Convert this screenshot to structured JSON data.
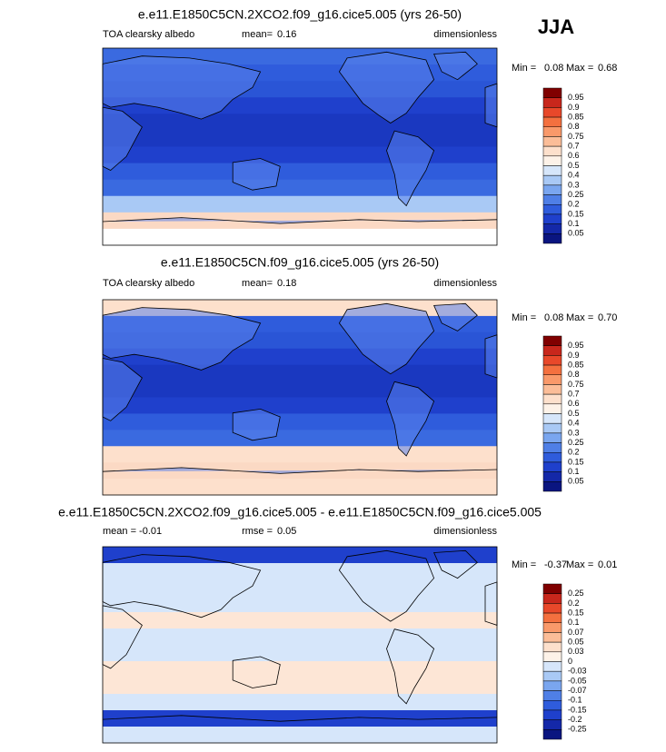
{
  "season": "JJA",
  "panels": [
    {
      "title": "e.e11.E1850C5CN.2XCO2.f09_g16.cice5.005 (yrs 26-50)",
      "left": "TOA clearsky albedo",
      "stat_label": "mean=",
      "stat_value": "0.16",
      "units": "dimensionless",
      "min_label": "Min =",
      "min": "0.08",
      "max_label": "Max =",
      "max": "0.68",
      "levels": [
        "0.95",
        "0.9",
        "0.85",
        "0.8",
        "0.75",
        "0.7",
        "0.6",
        "0.5",
        "0.4",
        "0.3",
        "0.25",
        "0.2",
        "0.15",
        "0.1",
        "0.05"
      ]
    },
    {
      "title": "e.e11.E1850C5CN.f09_g16.cice5.005 (yrs 26-50)",
      "left": "TOA clearsky albedo",
      "stat_label": "mean=",
      "stat_value": "0.18",
      "units": "dimensionless",
      "min_label": "Min =",
      "min": "0.08",
      "max_label": "Max =",
      "max": "0.70",
      "levels": [
        "0.95",
        "0.9",
        "0.85",
        "0.8",
        "0.75",
        "0.7",
        "0.6",
        "0.5",
        "0.4",
        "0.3",
        "0.25",
        "0.2",
        "0.15",
        "0.1",
        "0.05"
      ]
    },
    {
      "title": "e.e11.E1850C5CN.2XCO2.f09_g16.cice5.005 - e.e11.E1850C5CN.f09_g16.cice5.005",
      "left": "mean =  -0.01",
      "stat_label": "rmse =",
      "stat_value": "0.05",
      "units": "dimensionless",
      "min_label": "Min =",
      "min": "-0.37",
      "max_label": "Max =",
      "max": "0.01",
      "levels": [
        "0.25",
        "0.2",
        "0.15",
        "0.1",
        "0.07",
        "0.05",
        "0.03",
        "0",
        "-0.03",
        "-0.05",
        "-0.07",
        "-0.1",
        "-0.15",
        "-0.2",
        "-0.25"
      ]
    }
  ]
}
